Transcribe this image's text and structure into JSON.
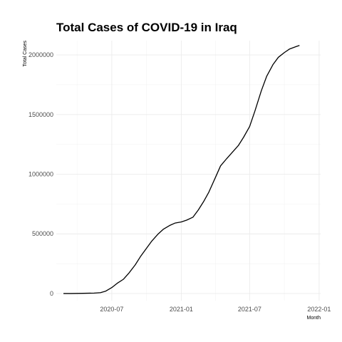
{
  "chart_data": {
    "type": "line",
    "title": "Total Cases of COVID-19 in Iraq",
    "xlabel": "Month",
    "ylabel": "Total Cases",
    "x_ticks": [
      "2020-07",
      "2021-01",
      "2021-07",
      "2022-01"
    ],
    "y_ticks": [
      "0",
      "500000",
      "1000000",
      "1500000",
      "2000000"
    ],
    "xlim": [
      "2020-02-05",
      "2022-01-05"
    ],
    "ylim": [
      -60000,
      2120000
    ],
    "grid": true,
    "legend": "none",
    "line_color": "#000000",
    "series": [
      {
        "x": [
          "2020-02-24",
          "2020-03-15",
          "2020-04-15",
          "2020-05-15",
          "2020-06-01",
          "2020-06-15",
          "2020-07-01",
          "2020-07-15",
          "2020-08-01",
          "2020-08-15",
          "2020-09-01",
          "2020-09-15",
          "2020-10-01",
          "2020-10-15",
          "2020-11-01",
          "2020-11-15",
          "2020-12-01",
          "2020-12-15",
          "2021-01-01",
          "2021-01-15",
          "2021-02-01",
          "2021-02-15",
          "2021-03-01",
          "2021-03-15",
          "2021-04-01",
          "2021-04-15",
          "2021-05-01",
          "2021-05-15",
          "2021-06-01",
          "2021-06-15",
          "2021-07-01",
          "2021-07-15",
          "2021-08-01",
          "2021-08-15",
          "2021-09-01",
          "2021-09-15",
          "2021-10-01",
          "2021-10-15",
          "2021-11-01",
          "2021-11-10"
        ],
        "y": [
          0,
          100,
          1500,
          3500,
          7000,
          20000,
          50000,
          85000,
          120000,
          170000,
          240000,
          310000,
          380000,
          440000,
          500000,
          540000,
          570000,
          590000,
          600000,
          615000,
          640000,
          700000,
          770000,
          850000,
          970000,
          1070000,
          1130000,
          1180000,
          1240000,
          1310000,
          1400000,
          1530000,
          1700000,
          1820000,
          1920000,
          1980000,
          2020000,
          2050000,
          2070000,
          2080000
        ]
      }
    ]
  }
}
